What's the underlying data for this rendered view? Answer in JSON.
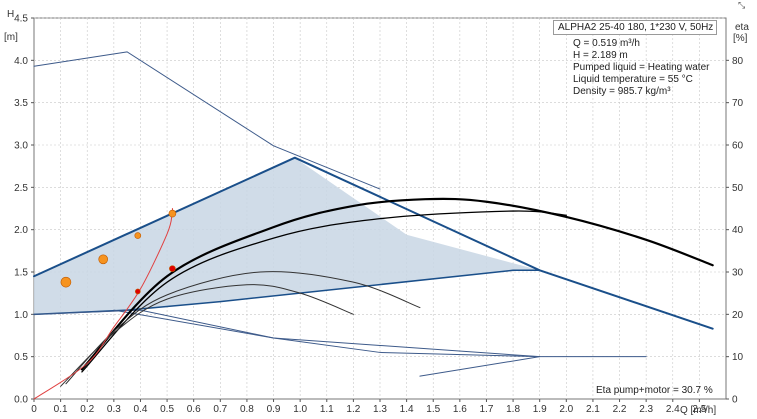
{
  "chart_data": {
    "type": "line",
    "title": "ALPHA2 25-40 180, 1*230 V, 50Hz",
    "xlabel": "Q [m³/h]",
    "ylabel_left_name": "H",
    "ylabel_left_unit": "[m]",
    "ylabel_right_name": "eta",
    "ylabel_right_unit": "[%]",
    "xlim": [
      0,
      2.6
    ],
    "ylim": [
      0,
      4.5
    ],
    "y2lim": [
      0,
      90
    ],
    "x_ticks": [
      "0",
      "0.1",
      "0.2",
      "0.3",
      "0.4",
      "0.5",
      "0.6",
      "0.7",
      "0.8",
      "0.9",
      "1.0",
      "1.1",
      "1.2",
      "1.3",
      "1.4",
      "1.5",
      "1.6",
      "1.7",
      "1.8",
      "1.9",
      "2.0",
      "2.1",
      "2.2",
      "2.3",
      "2.4",
      "2.5"
    ],
    "y_ticks": [
      "0.0",
      "0.5",
      "1.0",
      "1.5",
      "2.0",
      "2.5",
      "3.0",
      "3.5",
      "4.0",
      "4.5"
    ],
    "y2_ticks": [
      "0",
      "10",
      "20",
      "30",
      "40",
      "50",
      "60",
      "70",
      "80"
    ],
    "grid": true,
    "info": [
      "Q = 0.519 m³/h",
      "H = 2.189 m",
      "Pumped liquid = Heating water",
      "Liquid temperature = 55 °C",
      "Density = 985.7 kg/m³"
    ],
    "efficiency_note": "Eta pump+motor = 30.7 %",
    "operating_region": {
      "points": [
        [
          0,
          1.0
        ],
        [
          0.35,
          1.05
        ],
        [
          0.7,
          1.15
        ],
        [
          1.8,
          1.52
        ],
        [
          1.9,
          1.52
        ],
        [
          1.4,
          1.94
        ],
        [
          0.98,
          2.85
        ],
        [
          0,
          1.45
        ]
      ],
      "fill": "#c8d6e4"
    },
    "series": [
      {
        "role": "max-curve",
        "x": [
          0,
          0.98,
          1.9,
          2.55
        ],
        "y": [
          1.45,
          2.85,
          1.52,
          0.83
        ],
        "color": "#1a4f8a",
        "width": 2
      },
      {
        "role": "min-curve",
        "x": [
          0,
          0.35,
          0.7,
          1.8,
          1.9
        ],
        "y": [
          1.0,
          1.05,
          1.15,
          1.52,
          1.52
        ],
        "color": "#1a4f8a",
        "width": 1.5
      },
      {
        "role": "power-line",
        "x": [
          0,
          0.35,
          0.9,
          1.3
        ],
        "y": [
          3.93,
          4.1,
          2.99,
          2.48
        ],
        "color": "#3d5a8a",
        "width": 1
      },
      {
        "role": "power-line",
        "x": [
          0,
          0.4,
          0.9,
          1.3,
          1.9,
          2.3
        ],
        "y": [
          1.0,
          1.05,
          0.72,
          0.55,
          0.5,
          0.5
        ],
        "color": "#3d5a8a",
        "width": 1
      },
      {
        "role": "low-power-line",
        "x": [
          0.3,
          0.9,
          1.9,
          1.45
        ],
        "y": [
          1.05,
          0.72,
          0.5,
          0.27
        ],
        "color": "#3d5a8a",
        "width": 1
      },
      {
        "role": "efficiency",
        "x": [
          0.18,
          0.5,
          0.9,
          1.2,
          1.47,
          1.7,
          2.0,
          2.3,
          2.55
        ],
        "y": [
          0.35,
          1.45,
          2.03,
          2.28,
          2.36,
          2.33,
          2.15,
          1.88,
          1.58
        ],
        "color": "#000000",
        "width": 2.2
      },
      {
        "role": "efficiency",
        "x": [
          0.18,
          0.5,
          0.9,
          1.3,
          1.8,
          2.0
        ],
        "y": [
          0.32,
          1.38,
          1.9,
          2.13,
          2.22,
          2.17
        ],
        "color": "#000000",
        "width": 1.3
      },
      {
        "role": "efficiency",
        "x": [
          0.12,
          0.3,
          0.5,
          0.85,
          1.2,
          1.45
        ],
        "y": [
          0.18,
          0.8,
          1.23,
          1.5,
          1.38,
          1.08
        ],
        "color": "#333333",
        "width": 1
      },
      {
        "role": "efficiency",
        "x": [
          0.1,
          0.3,
          0.5,
          0.8,
          1.0,
          1.2
        ],
        "y": [
          0.15,
          0.78,
          1.18,
          1.35,
          1.25,
          1.0
        ],
        "color": "#333333",
        "width": 1
      },
      {
        "role": "system-curve",
        "x": [
          0.0,
          0.2,
          0.3,
          0.4,
          0.5,
          0.519,
          0.52
        ],
        "y": [
          0.0,
          0.42,
          0.85,
          1.3,
          1.95,
          2.189,
          2.25
        ],
        "color": "#e04040",
        "width": 1
      }
    ],
    "markers": [
      {
        "x": 0.12,
        "y": 1.38,
        "r": 5,
        "color": "#f6931f"
      },
      {
        "x": 0.26,
        "y": 1.65,
        "r": 4.5,
        "color": "#f6931f"
      },
      {
        "x": 0.39,
        "y": 1.93,
        "r": 3,
        "color": "#f6931f"
      },
      {
        "x": 0.52,
        "y": 2.19,
        "r": 3.5,
        "color": "#f6931f"
      },
      {
        "x": 0.52,
        "y": 1.54,
        "r": 3,
        "color": "#e00000"
      },
      {
        "x": 0.39,
        "y": 1.27,
        "r": 2.5,
        "color": "#e00000"
      }
    ]
  },
  "icons": {
    "corner": "resize-arrows-icon"
  }
}
